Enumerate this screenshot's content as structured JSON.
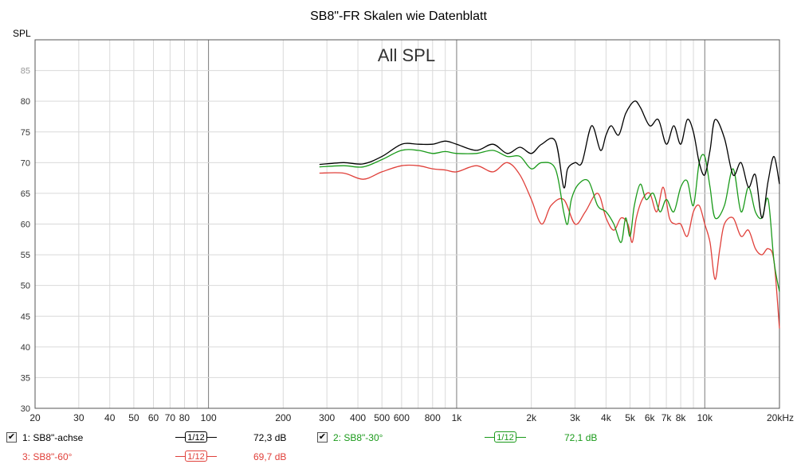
{
  "title": "SB8\"-FR Skalen wie Datenblatt",
  "ylabel": "SPL",
  "overlay_title": "All SPL",
  "colors": {
    "black": "#000000",
    "green": "#1a9a1a",
    "red": "#e0403a",
    "grid": "#d9d9d9",
    "grid_major": "#7a7a7a"
  },
  "legend": [
    {
      "label": "1: SB8\"-achse",
      "smoothing": "1/12",
      "value": "72,3 dB",
      "color": "#000000",
      "checked": true
    },
    {
      "label": "2: SB8\"-30°",
      "smoothing": "1/12",
      "value": "72,1 dB",
      "color": "#1a9a1a",
      "checked": true
    },
    {
      "label": "3: SB8\"-60°",
      "smoothing": "1/12",
      "value": "69,7 dB",
      "color": "#e0403a",
      "checked": false
    }
  ],
  "chart_data": {
    "type": "line",
    "title": "SB8\"-FR Skalen wie Datenblatt",
    "xlabel": "",
    "ylabel": "SPL",
    "x_scale": "log",
    "xlim": [
      20,
      20000
    ],
    "ylim": [
      30,
      90
    ],
    "grid": true,
    "x_ticks": [
      20,
      30,
      40,
      50,
      60,
      70,
      80,
      100,
      200,
      300,
      400,
      500,
      600,
      800,
      1000,
      2000,
      3000,
      4000,
      5000,
      6000,
      7000,
      8000,
      10000,
      20000
    ],
    "x_tick_labels": [
      "20",
      "30",
      "40",
      "50",
      "60",
      "70",
      "80",
      "100",
      "200",
      "300",
      "400",
      "500",
      "600",
      "800",
      "1k",
      "2k",
      "3k",
      "4k",
      "5k",
      "6k",
      "7k",
      "8k",
      "10k",
      "20kHz"
    ],
    "y_ticks": [
      30,
      35,
      40,
      45,
      50,
      55,
      60,
      65,
      70,
      75,
      80,
      85
    ],
    "series": [
      {
        "name": "1: SB8\"-achse",
        "color": "#000000",
        "x": [
          280,
          350,
          420,
          500,
          600,
          700,
          800,
          900,
          1000,
          1200,
          1400,
          1600,
          1800,
          2000,
          2200,
          2500,
          2700,
          2800,
          3000,
          3200,
          3500,
          3800,
          4000,
          4200,
          4500,
          4800,
          5200,
          5500,
          6000,
          6500,
          7000,
          7500,
          8000,
          8500,
          9000,
          9500,
          10000,
          10500,
          11000,
          12000,
          13000,
          14000,
          15000,
          16000,
          17000,
          18000,
          19000,
          20000
        ],
        "y": [
          69.7,
          70,
          69.8,
          71,
          73,
          73,
          73,
          73.5,
          73,
          72,
          73,
          71.5,
          72.5,
          71.5,
          73,
          73.5,
          66,
          69,
          70,
          70,
          76,
          72,
          74.5,
          76,
          74.5,
          78,
          80,
          79,
          76,
          77,
          73,
          76,
          73,
          77,
          75,
          70,
          68,
          72,
          77,
          74,
          68,
          70,
          66,
          68,
          61,
          67,
          71,
          66.5
        ]
      },
      {
        "name": "2: SB8\"-30°",
        "color": "#1a9a1a",
        "x": [
          280,
          350,
          420,
          500,
          600,
          700,
          800,
          900,
          1000,
          1200,
          1400,
          1600,
          1800,
          2000,
          2200,
          2500,
          2700,
          2800,
          2900,
          3100,
          3400,
          3700,
          4000,
          4300,
          4600,
          4800,
          5000,
          5200,
          5500,
          5800,
          6200,
          6600,
          7000,
          7500,
          8000,
          8500,
          9000,
          9500,
          10000,
          10500,
          11000,
          12000,
          13000,
          14000,
          15000,
          16000,
          17000,
          18000,
          19000,
          20000
        ],
        "y": [
          69.3,
          69.5,
          69.3,
          70.5,
          72,
          72,
          71.5,
          71.8,
          71.5,
          71.5,
          72,
          71,
          71,
          69,
          70,
          69,
          62,
          60,
          64,
          66.5,
          67,
          63,
          62,
          60,
          57,
          61,
          58,
          63,
          66.5,
          64,
          65,
          62,
          64,
          62,
          66,
          67,
          63,
          70,
          71,
          66,
          61,
          63,
          69,
          62,
          66,
          62,
          61,
          64,
          54,
          49
        ]
      },
      {
        "name": "3: SB8\"-60°",
        "color": "#e0403a",
        "x": [
          280,
          350,
          420,
          500,
          600,
          700,
          800,
          900,
          1000,
          1200,
          1400,
          1600,
          1800,
          2000,
          2200,
          2400,
          2700,
          3000,
          3300,
          3700,
          4000,
          4300,
          4600,
          4900,
          5100,
          5300,
          5600,
          6000,
          6400,
          6800,
          7200,
          7600,
          8000,
          8500,
          9000,
          9500,
          10000,
          10500,
          11000,
          11500,
          12000,
          13000,
          14000,
          15000,
          16000,
          17000,
          18000,
          19000,
          20000
        ],
        "y": [
          68.3,
          68.3,
          67.3,
          68.5,
          69.5,
          69.5,
          69,
          68.8,
          68.5,
          69.5,
          68.5,
          70,
          68,
          64,
          60,
          63,
          64,
          60,
          62,
          65,
          61,
          59,
          61,
          60,
          57,
          61,
          64,
          65,
          62,
          66,
          61,
          60,
          60,
          58,
          62,
          63,
          60,
          57,
          51,
          56,
          60,
          61,
          58,
          59,
          56,
          55,
          56,
          54,
          43
        ]
      }
    ]
  }
}
